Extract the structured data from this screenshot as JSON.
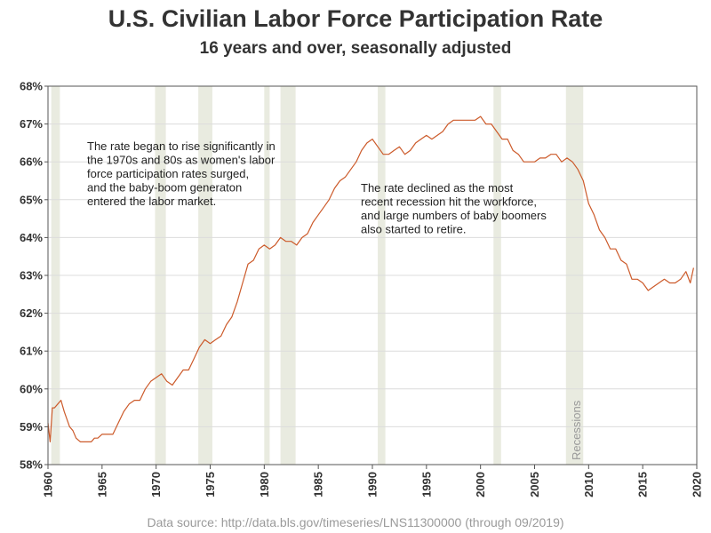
{
  "chart_data": {
    "type": "line",
    "title": "U.S. Civilian Labor Force Participation Rate",
    "subtitle": "16 years and over, seasonally adjusted",
    "source": "Data source: http://data.bls.gov/timeseries/LNS11300000 (through 09/2019)",
    "xlabel": "",
    "ylabel": "",
    "xlim": [
      1960,
      2020
    ],
    "ylim": [
      58,
      68
    ],
    "x_ticks": [
      "1960",
      "1965",
      "1970",
      "1975",
      "1980",
      "1985",
      "1990",
      "1995",
      "2000",
      "2005",
      "2010",
      "2015",
      "2020"
    ],
    "y_ticks": [
      "58%",
      "59%",
      "60%",
      "61%",
      "62%",
      "63%",
      "64%",
      "65%",
      "66%",
      "67%",
      "68%"
    ],
    "grid": "horizontal",
    "line_color": "#cc5a2a",
    "recession_color": "#e9ebe0",
    "recession_label": "Recessions",
    "recessions": [
      [
        1960.3,
        1961.1
      ],
      [
        1969.9,
        1970.9
      ],
      [
        1973.9,
        1975.2
      ],
      [
        1980.0,
        1980.5
      ],
      [
        1981.5,
        1982.9
      ],
      [
        1990.5,
        1991.2
      ],
      [
        2001.2,
        2001.9
      ],
      [
        2007.9,
        2009.5
      ]
    ],
    "series": [
      {
        "values": [
          [
            1960.0,
            59.1
          ],
          [
            1960.2,
            58.6
          ],
          [
            1960.4,
            59.5
          ],
          [
            1960.6,
            59.5
          ],
          [
            1960.9,
            59.6
          ],
          [
            1961.2,
            59.7
          ],
          [
            1961.5,
            59.4
          ],
          [
            1962.0,
            59.0
          ],
          [
            1962.3,
            58.9
          ],
          [
            1962.6,
            58.7
          ],
          [
            1963.0,
            58.6
          ],
          [
            1963.3,
            58.6
          ],
          [
            1963.6,
            58.6
          ],
          [
            1964.0,
            58.6
          ],
          [
            1964.3,
            58.7
          ],
          [
            1964.6,
            58.7
          ],
          [
            1965.0,
            58.8
          ],
          [
            1965.3,
            58.8
          ],
          [
            1965.6,
            58.8
          ],
          [
            1966.0,
            58.8
          ],
          [
            1966.5,
            59.1
          ],
          [
            1967.0,
            59.4
          ],
          [
            1967.5,
            59.6
          ],
          [
            1968.0,
            59.7
          ],
          [
            1968.5,
            59.7
          ],
          [
            1969.0,
            60.0
          ],
          [
            1969.5,
            60.2
          ],
          [
            1970.0,
            60.3
          ],
          [
            1970.5,
            60.4
          ],
          [
            1971.0,
            60.2
          ],
          [
            1971.5,
            60.1
          ],
          [
            1972.0,
            60.3
          ],
          [
            1972.5,
            60.5
          ],
          [
            1973.0,
            60.5
          ],
          [
            1973.5,
            60.8
          ],
          [
            1974.0,
            61.1
          ],
          [
            1974.5,
            61.3
          ],
          [
            1975.0,
            61.2
          ],
          [
            1975.5,
            61.3
          ],
          [
            1976.0,
            61.4
          ],
          [
            1976.5,
            61.7
          ],
          [
            1977.0,
            61.9
          ],
          [
            1977.5,
            62.3
          ],
          [
            1978.0,
            62.8
          ],
          [
            1978.5,
            63.3
          ],
          [
            1979.0,
            63.4
          ],
          [
            1979.5,
            63.7
          ],
          [
            1980.0,
            63.8
          ],
          [
            1980.5,
            63.7
          ],
          [
            1981.0,
            63.8
          ],
          [
            1981.5,
            64.0
          ],
          [
            1982.0,
            63.9
          ],
          [
            1982.5,
            63.9
          ],
          [
            1983.0,
            63.8
          ],
          [
            1983.5,
            64.0
          ],
          [
            1984.0,
            64.1
          ],
          [
            1984.5,
            64.4
          ],
          [
            1985.0,
            64.6
          ],
          [
            1985.5,
            64.8
          ],
          [
            1986.0,
            65.0
          ],
          [
            1986.5,
            65.3
          ],
          [
            1987.0,
            65.5
          ],
          [
            1987.5,
            65.6
          ],
          [
            1988.0,
            65.8
          ],
          [
            1988.5,
            66.0
          ],
          [
            1989.0,
            66.3
          ],
          [
            1989.5,
            66.5
          ],
          [
            1990.0,
            66.6
          ],
          [
            1990.5,
            66.4
          ],
          [
            1991.0,
            66.2
          ],
          [
            1991.5,
            66.2
          ],
          [
            1992.0,
            66.3
          ],
          [
            1992.5,
            66.4
          ],
          [
            1993.0,
            66.2
          ],
          [
            1993.5,
            66.3
          ],
          [
            1994.0,
            66.5
          ],
          [
            1994.5,
            66.6
          ],
          [
            1995.0,
            66.7
          ],
          [
            1995.5,
            66.6
          ],
          [
            1996.0,
            66.7
          ],
          [
            1996.5,
            66.8
          ],
          [
            1997.0,
            67.0
          ],
          [
            1997.5,
            67.1
          ],
          [
            1998.0,
            67.1
          ],
          [
            1998.5,
            67.1
          ],
          [
            1999.0,
            67.1
          ],
          [
            1999.5,
            67.1
          ],
          [
            2000.0,
            67.2
          ],
          [
            2000.5,
            67.0
          ],
          [
            2001.0,
            67.0
          ],
          [
            2001.5,
            66.8
          ],
          [
            2002.0,
            66.6
          ],
          [
            2002.5,
            66.6
          ],
          [
            2003.0,
            66.3
          ],
          [
            2003.5,
            66.2
          ],
          [
            2004.0,
            66.0
          ],
          [
            2004.5,
            66.0
          ],
          [
            2005.0,
            66.0
          ],
          [
            2005.5,
            66.1
          ],
          [
            2006.0,
            66.1
          ],
          [
            2006.5,
            66.2
          ],
          [
            2007.0,
            66.2
          ],
          [
            2007.5,
            66.0
          ],
          [
            2008.0,
            66.1
          ],
          [
            2008.5,
            66.0
          ],
          [
            2009.0,
            65.8
          ],
          [
            2009.5,
            65.5
          ],
          [
            2010.0,
            64.9
          ],
          [
            2010.5,
            64.6
          ],
          [
            2011.0,
            64.2
          ],
          [
            2011.5,
            64.0
          ],
          [
            2012.0,
            63.7
          ],
          [
            2012.5,
            63.7
          ],
          [
            2013.0,
            63.4
          ],
          [
            2013.5,
            63.3
          ],
          [
            2014.0,
            62.9
          ],
          [
            2014.5,
            62.9
          ],
          [
            2015.0,
            62.8
          ],
          [
            2015.5,
            62.6
          ],
          [
            2016.0,
            62.7
          ],
          [
            2016.5,
            62.8
          ],
          [
            2017.0,
            62.9
          ],
          [
            2017.5,
            62.8
          ],
          [
            2018.0,
            62.8
          ],
          [
            2018.5,
            62.9
          ],
          [
            2019.0,
            63.1
          ],
          [
            2019.4,
            62.8
          ],
          [
            2019.7,
            63.2
          ]
        ]
      }
    ],
    "annotations": [
      {
        "lines": [
          "The rate began to rise significantly in",
          "the 1970s and 80s as women's labor",
          "force participation rates surged,",
          "and the baby-boom generaton",
          "entered the labor market."
        ]
      },
      {
        "lines": [
          "The rate declined as the most",
          "recent recession hit the workforce,",
          "and large numbers of baby boomers",
          "also started to retire."
        ]
      }
    ]
  }
}
